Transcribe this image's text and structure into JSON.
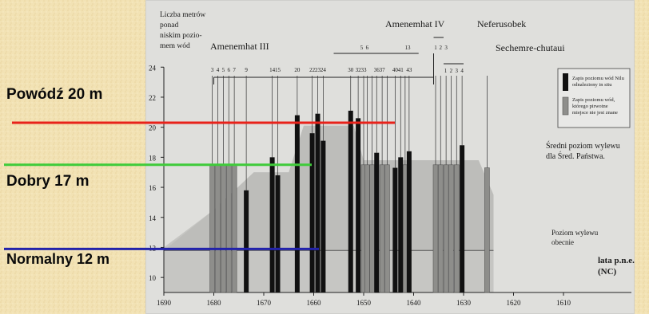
{
  "colors": {
    "background": "#f2e2b4",
    "paper": "#dfdfdc",
    "light_gray_area": "#c6c6c3",
    "dark_gray_area": "#a8a8a5",
    "black_bar": "#111111",
    "striped_bar": "#8e8e8b",
    "line_20m": "#e8221a",
    "line_17m": "#3fcb3a",
    "line_12m": "#2222aa"
  },
  "side_labels": {
    "flood": "Powódź 20 m",
    "good": "Dobry 17 m",
    "normal": "Normalny 12 m"
  },
  "chart_data": {
    "type": "bar",
    "ylabel_lines": [
      "Liczba metrów",
      "ponad",
      "niskim pozio-",
      "mem wód"
    ],
    "xlabel_lines": [
      "lata p.n.e.",
      "(NC)"
    ],
    "x_axis_reversed": true,
    "xlim": [
      1690,
      1605
    ],
    "ylim": [
      9,
      24
    ],
    "x_ticks": [
      1690,
      1680,
      1670,
      1660,
      1650,
      1640,
      1630,
      1620,
      1610
    ],
    "y_ticks": [
      10,
      12,
      14,
      16,
      18,
      20,
      22,
      24
    ],
    "reigns": [
      {
        "name": "Amenemhat III",
        "from": 1680,
        "to": 1636
      },
      {
        "name": "Amenemhat IV",
        "from": 1655,
        "to": 1639
      },
      {
        "name": "Neferusobek",
        "from": 1636,
        "to": 1634
      },
      {
        "name": "Sechemre-chutaui",
        "from": 1634,
        "to": 1630
      }
    ],
    "regnal_year_labels": [
      {
        "label": "3",
        "x": 1680.3
      },
      {
        "label": "4",
        "x": 1679.2
      },
      {
        "label": "5",
        "x": 1678.1
      },
      {
        "label": "6",
        "x": 1677.0
      },
      {
        "label": "7",
        "x": 1675.9
      },
      {
        "label": "9",
        "x": 1673.5
      },
      {
        "label": "14",
        "x": 1668.3
      },
      {
        "label": "15",
        "x": 1667.2
      },
      {
        "label": "20",
        "x": 1663.3
      },
      {
        "label": "22",
        "x": 1660.3
      },
      {
        "label": "23",
        "x": 1659.2
      },
      {
        "label": "24",
        "x": 1658.1
      },
      {
        "label": "30",
        "x": 1652.6
      },
      {
        "label": "32",
        "x": 1651.1
      },
      {
        "label": "33",
        "x": 1650.0
      },
      {
        "label": "36",
        "x": 1647.4
      },
      {
        "label": "37",
        "x": 1646.3
      },
      {
        "label": "40",
        "x": 1643.7
      },
      {
        "label": "41",
        "x": 1642.6
      },
      {
        "label": "43",
        "x": 1640.9
      },
      {
        "label": "5",
        "x": 1650.4
      },
      {
        "label": "6",
        "x": 1649.3
      },
      {
        "label": "13",
        "x": 1641.2
      },
      {
        "label": "1",
        "x": 1635.6
      },
      {
        "label": "2",
        "x": 1634.6
      },
      {
        "label": "3",
        "x": 1633.5
      },
      {
        "label": "1",
        "x": 1633.6
      },
      {
        "label": "2",
        "x": 1632.5
      },
      {
        "label": "3",
        "x": 1631.4
      },
      {
        "label": "4",
        "x": 1630.3
      }
    ],
    "series": [
      {
        "name": "Zapis poziomu wód Nilu odnaleziony in situ",
        "style": "black",
        "points": [
          {
            "x": 1673.5,
            "y": 15.8
          },
          {
            "x": 1668.3,
            "y": 18.0
          },
          {
            "x": 1667.2,
            "y": 16.8
          },
          {
            "x": 1663.3,
            "y": 20.8
          },
          {
            "x": 1660.3,
            "y": 19.6
          },
          {
            "x": 1659.2,
            "y": 20.9
          },
          {
            "x": 1658.1,
            "y": 19.1
          },
          {
            "x": 1652.6,
            "y": 21.1
          },
          {
            "x": 1651.1,
            "y": 20.6
          },
          {
            "x": 1647.4,
            "y": 18.3
          },
          {
            "x": 1643.7,
            "y": 17.3
          },
          {
            "x": 1642.6,
            "y": 18.0
          },
          {
            "x": 1640.9,
            "y": 18.4
          },
          {
            "x": 1630.3,
            "y": 18.8
          }
        ]
      },
      {
        "name": "Zapis poziomu wód, którego pirwotne miejsce nie jest znane",
        "style": "striped",
        "points": [
          {
            "x": 1680.3,
            "y": 17.5
          },
          {
            "x": 1679.2,
            "y": 17.5
          },
          {
            "x": 1678.1,
            "y": 17.5
          },
          {
            "x": 1677.0,
            "y": 17.5
          },
          {
            "x": 1675.9,
            "y": 17.5
          },
          {
            "x": 1650.0,
            "y": 17.5
          },
          {
            "x": 1649.3,
            "y": 17.5
          },
          {
            "x": 1648.3,
            "y": 17.5
          },
          {
            "x": 1646.3,
            "y": 17.5
          },
          {
            "x": 1645.3,
            "y": 17.5
          },
          {
            "x": 1641.7,
            "y": 17.5
          },
          {
            "x": 1635.6,
            "y": 17.5
          },
          {
            "x": 1634.6,
            "y": 17.5
          },
          {
            "x": 1633.5,
            "y": 17.5
          },
          {
            "x": 1632.5,
            "y": 17.5
          },
          {
            "x": 1631.4,
            "y": 17.5
          },
          {
            "x": 1625.3,
            "y": 17.3
          }
        ]
      }
    ],
    "avg_flood_area": {
      "label": "Średni poziom wylewu dla Śred. Państwa.",
      "points": [
        [
          1690,
          12.0
        ],
        [
          1680,
          14.5
        ],
        [
          1672,
          17.0
        ],
        [
          1665,
          17.0
        ],
        [
          1662,
          20.1
        ],
        [
          1652,
          20.1
        ],
        [
          1650,
          17.8
        ],
        [
          1635,
          17.8
        ],
        [
          1627,
          17.8
        ],
        [
          1624,
          15.5
        ],
        [
          1624,
          11.8
        ]
      ]
    },
    "current_level": {
      "label": "Poziom wylewu obecnie",
      "y": 11.8
    },
    "reference_lines": [
      {
        "name": "Powódź 20 m",
        "y": 20.3,
        "color": "#e8221a"
      },
      {
        "name": "Dobry 17 m",
        "y": 17.5,
        "color": "#3fcb3a"
      },
      {
        "name": "Normalny 12 m",
        "y": 11.9,
        "color": "#2222aa"
      }
    ]
  }
}
